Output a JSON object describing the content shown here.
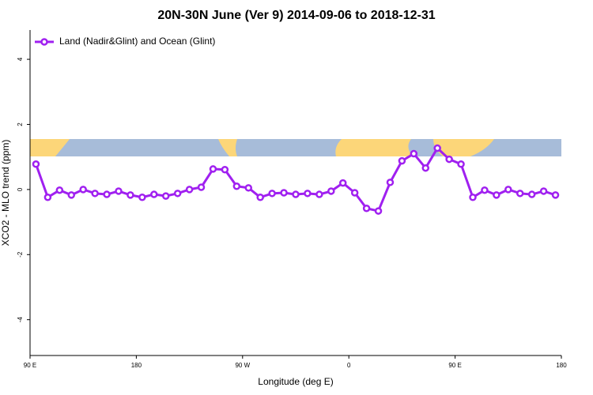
{
  "chart_data": {
    "type": "line",
    "title": "20N-30N June (Ver 9)   2014-09-06 to 2018-12-31",
    "x_label": "Longitude (deg E)",
    "y_label": "XCO2 - MLO trend (ppm)",
    "x": [
      95,
      105,
      115,
      125,
      135,
      145,
      155,
      165,
      175,
      185,
      195,
      205,
      215,
      225,
      235,
      245,
      255,
      265,
      275,
      285,
      295,
      305,
      315,
      325,
      335,
      345,
      355,
      365,
      375,
      385,
      395,
      405,
      415,
      425,
      435,
      445,
      455,
      465,
      475,
      485,
      495,
      505,
      515,
      525,
      535
    ],
    "series": [
      {
        "name": "Land (Nadir&Glint) and Ocean (Glint)",
        "color": "#a020f0",
        "values": [
          0.78,
          -0.24,
          -0.02,
          -0.17,
          0.0,
          -0.12,
          -0.15,
          -0.05,
          -0.17,
          -0.24,
          -0.15,
          -0.2,
          -0.12,
          0.0,
          0.07,
          0.63,
          0.61,
          0.1,
          0.05,
          -0.24,
          -0.12,
          -0.1,
          -0.15,
          -0.12,
          -0.15,
          -0.05,
          0.2,
          -0.1,
          -0.58,
          -0.66,
          0.22,
          0.88,
          1.1,
          0.66,
          1.27,
          0.93,
          0.78,
          -0.24,
          -0.02,
          -0.17,
          0.0,
          -0.12,
          -0.15,
          -0.05,
          -0.17
        ]
      }
    ],
    "xlim": [
      90,
      540
    ],
    "xticks": [
      {
        "value": 90,
        "label": "90 E"
      },
      {
        "value": 180,
        "label": "180"
      },
      {
        "value": 270,
        "label": "90 W"
      },
      {
        "value": 360,
        "label": "0"
      },
      {
        "value": 450,
        "label": "90 E"
      },
      {
        "value": 540,
        "label": "180"
      }
    ],
    "ylim": [
      -5.1,
      4.9
    ],
    "yticks": [
      -4,
      -2,
      0,
      2,
      4
    ],
    "legend": "top-left"
  }
}
